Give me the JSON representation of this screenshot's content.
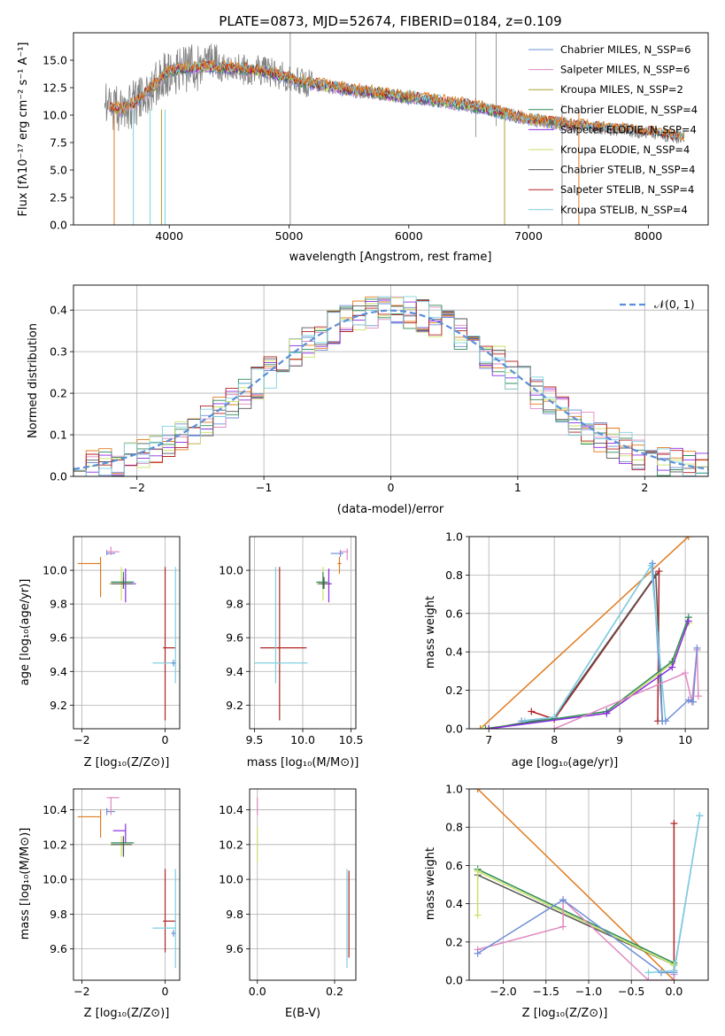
{
  "figure": {
    "title": "PLATE=0873, MJD=52674, FIBERID=0184, z=0.109"
  },
  "series_colors": {
    "Chabrier MILES": "#6f8fd6",
    "Salpeter MILES": "#e08ac2",
    "Kroupa MILES": "#a8a033",
    "Chabrier ELODIE": "#2e8b57",
    "Salpeter ELODIE": "#8a2be2",
    "Kroupa ELODIE": "#c9e265",
    "Chabrier STELIB": "#555555",
    "Salpeter STELIB": "#b22222",
    "Kroupa STELIB": "#7fd0e0",
    "orange": "#e07b1f",
    "data": "#808080",
    "normal": "#5b8fd9"
  },
  "chart_data": [
    {
      "id": "spectrum",
      "type": "line",
      "title": "PLATE=0873, MJD=52674, FIBERID=0184, z=0.109",
      "xlabel": "wavelength [Angstrom, rest frame]",
      "ylabel": "Flux [fλ10⁻¹⁷ erg cm⁻² s⁻¹ A⁻¹]",
      "xlim": [
        3200,
        8500
      ],
      "ylim": [
        0,
        17.5
      ],
      "xticks": [
        4000,
        5000,
        6000,
        7000,
        8000
      ],
      "yticks": [
        0.0,
        2.5,
        5.0,
        7.5,
        10.0,
        12.5,
        15.0
      ],
      "ytick_labels": [
        "0.0",
        "2.5",
        "5.0",
        "7.5",
        "10.0",
        "12.5",
        "15.0"
      ],
      "grid": false,
      "legend_position": "top-right",
      "legend": [
        "Chabrier MILES, N_SSP=6",
        "Salpeter MILES, N_SSP=6",
        "Kroupa MILES, N_SSP=2",
        "Chabrier ELODIE, N_SSP=4",
        "Salpeter ELODIE, N_SSP=4",
        "Kroupa ELODIE, N_SSP=4",
        "Chabrier STELIB, N_SSP=4",
        "Salpeter STELIB, N_SSP=4",
        "Kroupa STELIB, N_SSP=4"
      ],
      "continuum_x": [
        3450,
        3600,
        3700,
        3850,
        4000,
        4300,
        4800,
        5100,
        5500,
        6000,
        6500,
        7000,
        7500,
        8000,
        8300
      ],
      "continuum_y": [
        10.8,
        10.5,
        11.0,
        12.5,
        14.0,
        14.4,
        14.0,
        13.0,
        12.3,
        11.6,
        10.9,
        9.6,
        8.9,
        8.4,
        7.9
      ]
    },
    {
      "id": "residuals",
      "type": "line",
      "xlabel": "(data-model)/error",
      "ylabel": "Normed distribution",
      "xlim": [
        -2.5,
        2.5
      ],
      "ylim": [
        0,
        0.46
      ],
      "xticks": [
        -2,
        -1,
        0,
        1,
        2
      ],
      "xtick_labels": [
        "−2",
        "−1",
        "0",
        "1",
        "2"
      ],
      "yticks": [
        0.0,
        0.1,
        0.2,
        0.3,
        0.4
      ],
      "ytick_labels": [
        "0.0",
        "0.1",
        "0.2",
        "0.3",
        "0.4"
      ],
      "grid": true,
      "legend_position": "top-right",
      "legend": [
        "𝒩(0, 1)"
      ]
    },
    {
      "id": "age_vs_z",
      "type": "scatter",
      "xlabel": "Z [log₁₀(Z/Z⊙)]",
      "ylabel": "age  [log₁₀(age/yr)]",
      "xlim": [
        -2.2,
        0.35
      ],
      "ylim": [
        9.06,
        10.2
      ],
      "xticks": [
        -2,
        0
      ],
      "xtick_labels": [
        "−2",
        "0"
      ],
      "yticks": [
        9.2,
        9.4,
        9.6,
        9.8,
        10.0
      ],
      "ytick_labels": [
        "9.2",
        "9.4",
        "9.6",
        "9.8",
        "10.0"
      ],
      "grid": true,
      "points": [
        {
          "series": "orange",
          "x": -1.55,
          "xerr": [
            0.55,
            0
          ],
          "y": 10.04,
          "yerr": [
            0.2,
            0.04
          ]
        },
        {
          "series": "Chabrier MILES",
          "x": -1.4,
          "xerr": [
            0,
            0.2
          ],
          "y": 10.1,
          "yerr": [
            0.01,
            0.02
          ]
        },
        {
          "series": "Salpeter MILES",
          "x": -1.3,
          "xerr": [
            0.1,
            0.2
          ],
          "y": 10.11,
          "yerr": [
            0.02,
            0.03
          ]
        },
        {
          "series": "Salpeter ELODIE",
          "x": -0.95,
          "xerr": [
            0.1,
            0.25
          ],
          "y": 9.92,
          "yerr": [
            0.11,
            0.09
          ]
        },
        {
          "series": "Kroupa ELODIE",
          "x": -1.05,
          "xerr": [
            0.3,
            0.2
          ],
          "y": 9.92,
          "yerr": [
            0.1,
            0.1
          ]
        },
        {
          "series": "Chabrier ELODIE",
          "x": -1.0,
          "xerr": [
            0.3,
            0.25
          ],
          "y": 9.93,
          "yerr": [
            0.04,
            0.06
          ]
        },
        {
          "series": "Chabrier STELIB",
          "x": -1.0,
          "xerr": [
            0.3,
            0.2
          ],
          "y": 9.92,
          "yerr": [
            0.03,
            0.04
          ]
        },
        {
          "series": "Salpeter STELIB",
          "x": 0.0,
          "xerr": [
            0.05,
            0.25
          ],
          "y": 9.54,
          "yerr": [
            0.43,
            0.48
          ]
        },
        {
          "series": "Kroupa STELIB",
          "x": 0.25,
          "xerr": [
            0.55,
            0.02
          ],
          "y": 9.45,
          "yerr": [
            0.12,
            0.57
          ]
        },
        {
          "series": "Chabrier MILES",
          "x": 0.2,
          "xerr": [
            0.05,
            0.05
          ],
          "y": 9.45,
          "yerr": [
            0.02,
            0.02
          ]
        }
      ]
    },
    {
      "id": "age_vs_mass",
      "type": "scatter",
      "xlabel": "mass [log₁₀(M/M⊙)]",
      "ylabel": "",
      "xlim": [
        9.45,
        10.55
      ],
      "ylim": [
        9.06,
        10.2
      ],
      "xticks": [
        9.5,
        10.0,
        10.5
      ],
      "xtick_labels": [
        "9.5",
        "10.0",
        "10.5"
      ],
      "yticks": [
        9.2,
        9.4,
        9.6,
        9.8,
        10.0
      ],
      "ytick_labels": [
        "9.2",
        "9.4",
        "9.6",
        "9.8",
        "10.0"
      ],
      "grid": true,
      "points": [
        {
          "series": "orange",
          "x": 10.38,
          "xerr": [
            0.02,
            0.02
          ],
          "y": 10.04,
          "yerr": [
            0.06,
            0.04
          ]
        },
        {
          "series": "Chabrier MILES",
          "x": 10.39,
          "xerr": [
            0.1,
            0.03
          ],
          "y": 10.1,
          "yerr": [
            0.02,
            0.02
          ]
        },
        {
          "series": "Salpeter MILES",
          "x": 10.46,
          "xerr": [
            0.08,
            0.01
          ],
          "y": 10.11,
          "yerr": [
            0.05,
            0.02
          ]
        },
        {
          "series": "Salpeter ELODIE",
          "x": 10.27,
          "xerr": [
            0.07,
            0.03
          ],
          "y": 9.92,
          "yerr": [
            0.11,
            0.09
          ]
        },
        {
          "series": "Kroupa ELODIE",
          "x": 10.21,
          "xerr": [
            0.07,
            0.05
          ],
          "y": 9.92,
          "yerr": [
            0.1,
            0.1
          ]
        },
        {
          "series": "Chabrier ELODIE",
          "x": 10.21,
          "xerr": [
            0.07,
            0.05
          ],
          "y": 9.93,
          "yerr": [
            0.04,
            0.06
          ]
        },
        {
          "series": "Chabrier STELIB",
          "x": 10.22,
          "xerr": [
            0.06,
            0.04
          ],
          "y": 9.92,
          "yerr": [
            0.03,
            0.04
          ]
        },
        {
          "series": "Salpeter STELIB",
          "x": 9.76,
          "xerr": [
            0.2,
            0.28
          ],
          "y": 9.54,
          "yerr": [
            0.43,
            0.48
          ]
        },
        {
          "series": "Kroupa STELIB",
          "x": 9.72,
          "xerr": [
            0.22,
            0.33
          ],
          "y": 9.45,
          "yerr": [
            0.12,
            0.57
          ]
        }
      ]
    },
    {
      "id": "weight_vs_age",
      "type": "line",
      "xlabel": "age  [log₁₀(age/yr)]",
      "ylabel": "mass weight",
      "xlim": [
        6.7,
        10.35
      ],
      "ylim": [
        0,
        1.0
      ],
      "xticks": [
        7,
        8,
        9,
        10
      ],
      "xtick_labels": [
        "7",
        "8",
        "9",
        "10"
      ],
      "yticks": [
        0.0,
        0.2,
        0.4,
        0.6,
        0.8,
        1.0
      ],
      "ytick_labels": [
        "0.0",
        "0.2",
        "0.4",
        "0.6",
        "0.8",
        "1.0"
      ],
      "grid": true,
      "series": [
        {
          "name": "orange",
          "x": [
            6.87,
            10.05
          ],
          "y": [
            0.0,
            1.0
          ]
        },
        {
          "name": "Salpeter STELIB",
          "x": [
            7.65,
            8.0,
            9.6,
            9.58
          ],
          "y": [
            0.09,
            0.05,
            0.82,
            0.04
          ]
        },
        {
          "name": "Chabrier STELIB",
          "x": [
            7.0,
            8.0,
            9.55,
            9.65
          ],
          "y": [
            0.0,
            0.06,
            0.8,
            0.04
          ]
        },
        {
          "name": "Chabrier MILES",
          "x": [
            7.5,
            8.0,
            9.5,
            9.65
          ],
          "y": [
            0.04,
            0.06,
            0.86,
            0.04
          ]
        },
        {
          "name": "Kroupa STELIB",
          "x": [
            7.55,
            8.0,
            9.48,
            9.7
          ],
          "y": [
            0.04,
            0.06,
            0.85,
            0.04
          ]
        },
        {
          "name": "Kroupa ELODIE",
          "x": [
            6.9,
            8.8,
            9.8,
            10.05
          ],
          "y": [
            0.0,
            0.08,
            0.34,
            0.55
          ]
        },
        {
          "name": "Chabrier ELODIE",
          "x": [
            6.95,
            8.8,
            9.8,
            10.05
          ],
          "y": [
            0.0,
            0.09,
            0.35,
            0.58
          ]
        },
        {
          "name": "Salpeter ELODIE",
          "x": [
            7.0,
            8.8,
            9.8,
            10.05
          ],
          "y": [
            0.0,
            0.08,
            0.32,
            0.56
          ]
        },
        {
          "name": "Salpeter MILES",
          "x": [
            8.0,
            10.0,
            10.1,
            10.18,
            10.2
          ],
          "y": [
            0.0,
            0.29,
            0.14,
            0.41,
            0.17
          ]
        },
        {
          "name": "Chabrier MILES",
          "x": [
            9.7,
            10.05,
            10.12,
            10.18
          ],
          "y": [
            0.04,
            0.15,
            0.14,
            0.42
          ]
        }
      ]
    },
    {
      "id": "mass_vs_z",
      "type": "scatter",
      "xlabel": "Z [log₁₀(Z/Z⊙)]",
      "ylabel": "mass [log₁₀(M/M⊙)]",
      "xlim": [
        -2.2,
        0.35
      ],
      "ylim": [
        9.42,
        10.52
      ],
      "xticks": [
        -2,
        0
      ],
      "xtick_labels": [
        "−2",
        "0"
      ],
      "yticks": [
        9.6,
        9.8,
        10.0,
        10.2,
        10.4
      ],
      "ytick_labels": [
        "9.6",
        "9.8",
        "10.0",
        "10.2",
        "10.4"
      ],
      "grid": true,
      "points": [
        {
          "series": "orange",
          "x": -1.55,
          "xerr": [
            0.55,
            0
          ],
          "y": 10.36,
          "yerr": [
            0.12,
            0.04
          ]
        },
        {
          "series": "Chabrier MILES",
          "x": -1.4,
          "xerr": [
            0,
            0.2
          ],
          "y": 10.39,
          "yerr": [
            0.02,
            0.02
          ]
        },
        {
          "series": "Salpeter MILES",
          "x": -1.3,
          "xerr": [
            0.1,
            0.2
          ],
          "y": 10.47,
          "yerr": [
            0.1,
            0.0
          ]
        },
        {
          "series": "Salpeter ELODIE",
          "x": -0.95,
          "xerr": [
            0.3,
            0.0
          ],
          "y": 10.28,
          "yerr": [
            0.07,
            0.04
          ]
        },
        {
          "series": "Kroupa ELODIE",
          "x": -1.05,
          "xerr": [
            0.3,
            0.2
          ],
          "y": 10.2,
          "yerr": [
            0.07,
            0.05
          ]
        },
        {
          "series": "Chabrier ELODIE",
          "x": -1.0,
          "xerr": [
            0.3,
            0.25
          ],
          "y": 10.21,
          "yerr": [
            0.07,
            0.04
          ]
        },
        {
          "series": "Chabrier STELIB",
          "x": -1.0,
          "xerr": [
            0.3,
            0.2
          ],
          "y": 10.2,
          "yerr": [
            0.07,
            0.04
          ]
        },
        {
          "series": "Salpeter STELIB",
          "x": 0.0,
          "xerr": [
            0.05,
            0.25
          ],
          "y": 9.76,
          "yerr": [
            0.18,
            0.3
          ]
        },
        {
          "series": "Kroupa STELIB",
          "x": 0.25,
          "xerr": [
            0.55,
            0.02
          ],
          "y": 9.72,
          "yerr": [
            0.23,
            0.34
          ]
        },
        {
          "series": "Chabrier MILES",
          "x": 0.2,
          "xerr": [
            0.05,
            0.05
          ],
          "y": 9.69,
          "yerr": [
            0.02,
            0.02
          ]
        }
      ]
    },
    {
      "id": "mass_vs_ebv",
      "type": "scatter",
      "xlabel": "E(B-V)",
      "ylabel": "",
      "xlim": [
        -0.02,
        0.255
      ],
      "ylim": [
        9.42,
        10.52
      ],
      "xticks": [
        0.0,
        0.2
      ],
      "xtick_labels": [
        "0.0",
        "0.2"
      ],
      "yticks": [
        9.6,
        9.8,
        10.0,
        10.2,
        10.4
      ],
      "ytick_labels": [
        "9.6",
        "9.8",
        "10.0",
        "10.2",
        "10.4"
      ],
      "grid": true,
      "points": [
        {
          "series": "Salpeter MILES",
          "x": 0.0,
          "xerr": [
            0,
            0
          ],
          "y": 10.42,
          "yerr": [
            0.05,
            0.05
          ]
        },
        {
          "series": "Kroupa ELODIE",
          "x": 0.0,
          "xerr": [
            0,
            0
          ],
          "y": 10.2,
          "yerr": [
            0.1,
            0.1
          ]
        },
        {
          "series": "Kroupa STELIB",
          "x": 0.232,
          "xerr": [
            0,
            0
          ],
          "y": 9.74,
          "yerr": [
            0.25,
            0.32
          ]
        },
        {
          "series": "Salpeter STELIB",
          "x": 0.237,
          "xerr": [
            0,
            0
          ],
          "y": 9.8,
          "yerr": [
            0.25,
            0.25
          ]
        }
      ]
    },
    {
      "id": "weight_vs_z",
      "type": "line",
      "xlabel": "Z [log₁₀(Z/Z⊙)]",
      "ylabel": "mass weight",
      "xlim": [
        -2.4,
        0.4
      ],
      "ylim": [
        0,
        1.0
      ],
      "xticks": [
        -2.0,
        -1.5,
        -1.0,
        -0.5,
        0.0
      ],
      "xtick_labels": [
        "−2.0",
        "−1.5",
        "−1.0",
        "−0.5",
        "0.0"
      ],
      "yticks": [
        0.0,
        0.2,
        0.4,
        0.6,
        0.8,
        1.0
      ],
      "ytick_labels": [
        "0.0",
        "0.2",
        "0.4",
        "0.6",
        "0.8",
        "1.0"
      ],
      "grid": true,
      "series": [
        {
          "name": "orange",
          "x": [
            -2.3,
            0.0
          ],
          "y": [
            1.0,
            0.0
          ]
        },
        {
          "name": "Salpeter STELIB",
          "x": [
            0.0,
            0.0
          ],
          "y": [
            0.82,
            0.05
          ]
        },
        {
          "name": "Chabrier STELIB",
          "x": [
            -2.3,
            0.0
          ],
          "y": [
            0.55,
            0.08
          ]
        },
        {
          "name": "Chabrier ELODIE",
          "x": [
            -2.3,
            0.0
          ],
          "y": [
            0.58,
            0.09
          ]
        },
        {
          "name": "Kroupa ELODIE",
          "x": [
            -2.3,
            -2.3,
            0.0
          ],
          "y": [
            0.34,
            0.57,
            0.08
          ]
        },
        {
          "name": "Salpeter MILES",
          "x": [
            -2.3,
            -1.3,
            -1.3,
            -0.3,
            0.0,
            0.0
          ],
          "y": [
            0.16,
            0.28,
            0.42,
            0.0,
            0.0,
            0.03
          ]
        },
        {
          "name": "Chabrier MILES",
          "x": [
            -2.3,
            -1.3,
            -0.15,
            0.0,
            0.3
          ],
          "y": [
            0.14,
            0.42,
            0.04,
            0.04,
            0.86
          ]
        },
        {
          "name": "Kroupa STELIB",
          "x": [
            -0.3,
            0.0,
            0.3
          ],
          "y": [
            0.04,
            0.05,
            0.86
          ]
        }
      ]
    }
  ]
}
